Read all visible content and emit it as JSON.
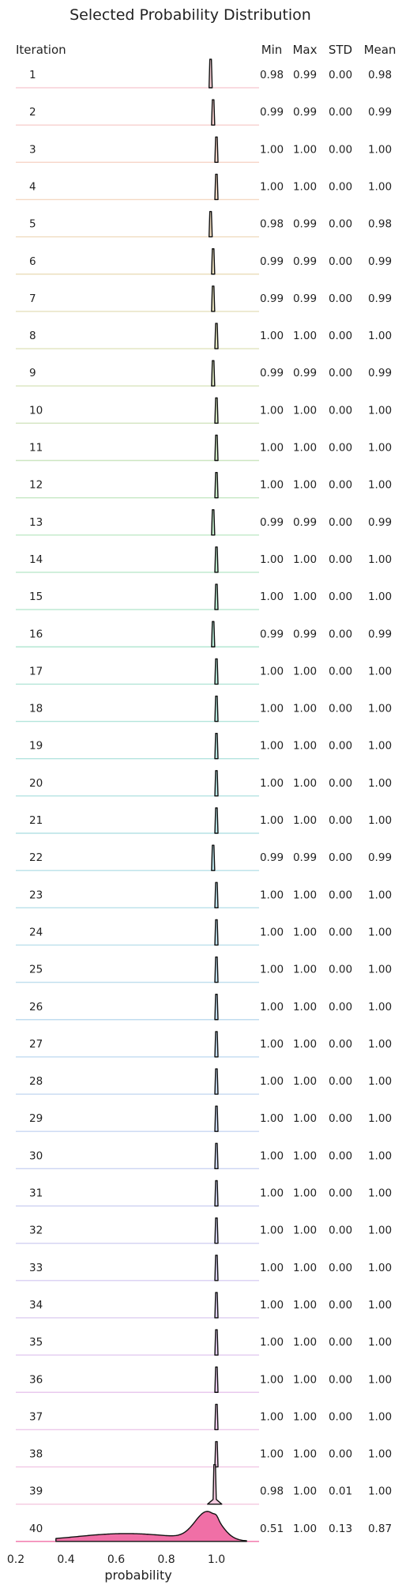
{
  "chart_data": {
    "type": "ridgeline",
    "title": "Selected Probability Distribution",
    "xlabel": "probability",
    "xlim": [
      0.2,
      1.15
    ],
    "xticks": [
      "0.2",
      "0.4",
      "0.6",
      "0.8",
      "1.0"
    ],
    "row_header": "Iteration",
    "column_headers": [
      "Min",
      "Max",
      "STD",
      "Mean"
    ],
    "rows": [
      {
        "label": "1",
        "min": "0.98",
        "max": "0.99",
        "std": "0.00",
        "mean": "0.98",
        "color": "#f7cfd6"
      },
      {
        "label": "2",
        "min": "0.99",
        "max": "0.99",
        "std": "0.00",
        "mean": "0.99",
        "color": "#f7d1cf"
      },
      {
        "label": "3",
        "min": "1.00",
        "max": "1.00",
        "std": "0.00",
        "mean": "1.00",
        "color": "#f7d5c8"
      },
      {
        "label": "4",
        "min": "1.00",
        "max": "1.00",
        "std": "0.00",
        "mean": "1.00",
        "color": "#f5d9c4"
      },
      {
        "label": "5",
        "min": "0.98",
        "max": "0.99",
        "std": "0.00",
        "mean": "0.98",
        "color": "#f0dcc0"
      },
      {
        "label": "6",
        "min": "0.99",
        "max": "0.99",
        "std": "0.00",
        "mean": "0.99",
        "color": "#ebdfbe"
      },
      {
        "label": "7",
        "min": "0.99",
        "max": "0.99",
        "std": "0.00",
        "mean": "0.99",
        "color": "#e6e1bd"
      },
      {
        "label": "8",
        "min": "1.00",
        "max": "1.00",
        "std": "0.00",
        "mean": "1.00",
        "color": "#e0e3bd"
      },
      {
        "label": "9",
        "min": "0.99",
        "max": "0.99",
        "std": "0.00",
        "mean": "0.99",
        "color": "#dae4be"
      },
      {
        "label": "10",
        "min": "1.00",
        "max": "1.00",
        "std": "0.00",
        "mean": "1.00",
        "color": "#d3e5bf"
      },
      {
        "label": "11",
        "min": "1.00",
        "max": "1.00",
        "std": "0.00",
        "mean": "1.00",
        "color": "#cde6c1"
      },
      {
        "label": "12",
        "min": "1.00",
        "max": "1.00",
        "std": "0.00",
        "mean": "1.00",
        "color": "#c6e7c4"
      },
      {
        "label": "13",
        "min": "0.99",
        "max": "0.99",
        "std": "0.00",
        "mean": "0.99",
        "color": "#c0e8c7"
      },
      {
        "label": "14",
        "min": "1.00",
        "max": "1.00",
        "std": "0.00",
        "mean": "1.00",
        "color": "#bbe8cb"
      },
      {
        "label": "15",
        "min": "1.00",
        "max": "1.00",
        "std": "0.00",
        "mean": "1.00",
        "color": "#b7e8cf"
      },
      {
        "label": "16",
        "min": "0.99",
        "max": "0.99",
        "std": "0.00",
        "mean": "0.99",
        "color": "#b4e7d3"
      },
      {
        "label": "17",
        "min": "1.00",
        "max": "1.00",
        "std": "0.00",
        "mean": "1.00",
        "color": "#b3e6d7"
      },
      {
        "label": "18",
        "min": "1.00",
        "max": "1.00",
        "std": "0.00",
        "mean": "1.00",
        "color": "#b3e5db"
      },
      {
        "label": "19",
        "min": "1.00",
        "max": "1.00",
        "std": "0.00",
        "mean": "1.00",
        "color": "#b4e4df"
      },
      {
        "label": "20",
        "min": "1.00",
        "max": "1.00",
        "std": "0.00",
        "mean": "1.00",
        "color": "#b5e3e2"
      },
      {
        "label": "21",
        "min": "1.00",
        "max": "1.00",
        "std": "0.00",
        "mean": "1.00",
        "color": "#b6e2e5"
      },
      {
        "label": "22",
        "min": "0.99",
        "max": "0.99",
        "std": "0.00",
        "mean": "0.99",
        "color": "#b8e1e8"
      },
      {
        "label": "23",
        "min": "1.00",
        "max": "1.00",
        "std": "0.00",
        "mean": "1.00",
        "color": "#bae0ea"
      },
      {
        "label": "24",
        "min": "1.00",
        "max": "1.00",
        "std": "0.00",
        "mean": "1.00",
        "color": "#bcdfec"
      },
      {
        "label": "25",
        "min": "1.00",
        "max": "1.00",
        "std": "0.00",
        "mean": "1.00",
        "color": "#bedeee"
      },
      {
        "label": "26",
        "min": "1.00",
        "max": "1.00",
        "std": "0.00",
        "mean": "1.00",
        "color": "#c0dcef"
      },
      {
        "label": "27",
        "min": "1.00",
        "max": "1.00",
        "std": "0.00",
        "mean": "1.00",
        "color": "#c2dbf0"
      },
      {
        "label": "28",
        "min": "1.00",
        "max": "1.00",
        "std": "0.00",
        "mean": "1.00",
        "color": "#c5d9f1"
      },
      {
        "label": "29",
        "min": "1.00",
        "max": "1.00",
        "std": "0.00",
        "mean": "1.00",
        "color": "#c8d7f2"
      },
      {
        "label": "30",
        "min": "1.00",
        "max": "1.00",
        "std": "0.00",
        "mean": "1.00",
        "color": "#cbd5f2"
      },
      {
        "label": "31",
        "min": "1.00",
        "max": "1.00",
        "std": "0.00",
        "mean": "1.00",
        "color": "#cfd3f2"
      },
      {
        "label": "32",
        "min": "1.00",
        "max": "1.00",
        "std": "0.00",
        "mean": "1.00",
        "color": "#d3d1f2"
      },
      {
        "label": "33",
        "min": "1.00",
        "max": "1.00",
        "std": "0.00",
        "mean": "1.00",
        "color": "#d8cff2"
      },
      {
        "label": "34",
        "min": "1.00",
        "max": "1.00",
        "std": "0.00",
        "mean": "1.00",
        "color": "#ddcdf1"
      },
      {
        "label": "35",
        "min": "1.00",
        "max": "1.00",
        "std": "0.00",
        "mean": "1.00",
        "color": "#e2cbf0"
      },
      {
        "label": "36",
        "min": "1.00",
        "max": "1.00",
        "std": "0.00",
        "mean": "1.00",
        "color": "#e8c9ee"
      },
      {
        "label": "37",
        "min": "1.00",
        "max": "1.00",
        "std": "0.00",
        "mean": "1.00",
        "color": "#edc8ea"
      },
      {
        "label": "38",
        "min": "1.00",
        "max": "1.00",
        "std": "0.00",
        "mean": "1.00",
        "color": "#f1c8e5"
      },
      {
        "label": "39",
        "min": "0.98",
        "max": "1.00",
        "std": "0.01",
        "mean": "1.00",
        "color": "#f4c9df"
      },
      {
        "label": "40",
        "min": "0.51",
        "max": "1.00",
        "std": "0.13",
        "mean": "0.87",
        "color": "#f06fa6"
      }
    ]
  }
}
